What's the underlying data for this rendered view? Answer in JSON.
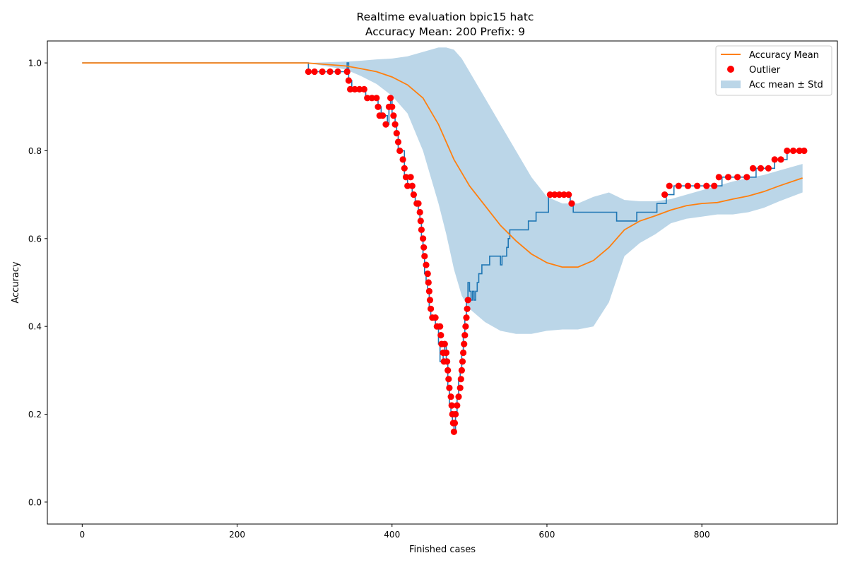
{
  "chart_data": {
    "type": "line",
    "title": "Realtime evaluation bpic15 hatc",
    "subtitle": "Accuracy Mean: 200 Prefix: 9",
    "xlabel": "Finished cases",
    "ylabel": "Accuracy",
    "xlim": [
      -45,
      975
    ],
    "ylim": [
      -0.05,
      1.05
    ],
    "xticks": [
      0,
      200,
      400,
      600,
      800
    ],
    "xtick_labels": [
      "0",
      "200",
      "400",
      "600",
      "800"
    ],
    "yticks": [
      0.0,
      0.2,
      0.4,
      0.6,
      0.8,
      1.0
    ],
    "ytick_labels": [
      "0.0",
      "0.2",
      "0.4",
      "0.6",
      "0.8",
      "1.0"
    ],
    "grid": false,
    "legend_position": "top-right",
    "legend": {
      "mean": "Accuracy Mean",
      "outlier": "Outlier",
      "band": "Acc mean ± Std"
    },
    "colors": {
      "accuracy": "#1f77b4",
      "mean": "#ff7f0e",
      "outlier": "#ff0000",
      "band": "#1f77b4"
    },
    "series": [
      {
        "kind": "accuracy",
        "x": [
          0,
          290,
          292,
          294,
          340,
          342,
          344,
          348,
          352,
          356,
          360,
          366,
          370,
          374,
          378,
          382,
          386,
          390,
          394,
          396,
          398,
          400,
          404,
          406,
          408,
          412,
          416,
          420,
          426,
          430,
          434,
          436,
          438,
          440,
          442,
          444,
          446,
          448,
          450,
          452,
          456,
          460,
          462,
          466,
          468,
          470,
          472,
          474,
          476,
          478,
          480,
          482,
          484,
          486,
          488,
          490,
          492,
          494,
          496,
          498,
          500,
          502,
          504,
          506,
          508,
          510,
          512,
          514,
          516,
          520,
          526,
          530,
          540,
          542,
          546,
          548,
          550,
          552,
          556,
          566,
          572,
          576,
          582,
          586,
          598,
          602,
          606,
          618,
          626,
          630,
          634,
          642,
          656,
          676,
          690,
          702,
          716,
          730,
          742,
          750,
          754,
          764,
          786,
          804,
          818,
          826,
          846,
          862,
          870,
          894,
          910,
          930
        ],
        "y": [
          1.0,
          1.0,
          0.98,
          0.98,
          0.98,
          1.0,
          0.96,
          0.94,
          0.94,
          0.94,
          0.94,
          0.92,
          0.92,
          0.92,
          0.92,
          0.9,
          0.88,
          0.88,
          0.86,
          0.9,
          0.92,
          0.88,
          0.86,
          0.84,
          0.8,
          0.8,
          0.74,
          0.72,
          0.7,
          0.68,
          0.66,
          0.64,
          0.6,
          0.56,
          0.52,
          0.5,
          0.48,
          0.44,
          0.42,
          0.42,
          0.4,
          0.36,
          0.32,
          0.34,
          0.36,
          0.32,
          0.26,
          0.22,
          0.2,
          0.18,
          0.16,
          0.2,
          0.24,
          0.28,
          0.3,
          0.34,
          0.38,
          0.42,
          0.46,
          0.5,
          0.48,
          0.46,
          0.48,
          0.46,
          0.48,
          0.5,
          0.52,
          0.52,
          0.54,
          0.54,
          0.56,
          0.56,
          0.54,
          0.56,
          0.56,
          0.58,
          0.6,
          0.62,
          0.62,
          0.62,
          0.62,
          0.64,
          0.64,
          0.66,
          0.66,
          0.7,
          0.7,
          0.7,
          0.7,
          0.68,
          0.66,
          0.66,
          0.66,
          0.66,
          0.64,
          0.64,
          0.66,
          0.66,
          0.68,
          0.68,
          0.7,
          0.72,
          0.72,
          0.72,
          0.72,
          0.74,
          0.74,
          0.74,
          0.76,
          0.78,
          0.8,
          0.8
        ]
      },
      {
        "kind": "mean",
        "name": "Accuracy Mean",
        "x": [
          0,
          200,
          290,
          340,
          360,
          380,
          400,
          420,
          440,
          460,
          480,
          500,
          520,
          540,
          560,
          580,
          600,
          620,
          640,
          660,
          680,
          700,
          720,
          740,
          760,
          780,
          800,
          820,
          840,
          860,
          880,
          900,
          930
        ],
        "y": [
          1.0,
          1.0,
          1.0,
          0.993,
          0.987,
          0.98,
          0.968,
          0.95,
          0.92,
          0.86,
          0.78,
          0.72,
          0.675,
          0.63,
          0.595,
          0.565,
          0.545,
          0.535,
          0.535,
          0.55,
          0.58,
          0.62,
          0.64,
          0.652,
          0.665,
          0.675,
          0.68,
          0.682,
          0.69,
          0.697,
          0.707,
          0.72,
          0.738
        ]
      },
      {
        "kind": "outlier",
        "name": "Outlier",
        "points": [
          [
            292,
            0.98
          ],
          [
            300,
            0.98
          ],
          [
            310,
            0.98
          ],
          [
            320,
            0.98
          ],
          [
            330,
            0.98
          ],
          [
            342,
            0.98
          ],
          [
            344,
            0.96
          ],
          [
            346,
            0.94
          ],
          [
            352,
            0.94
          ],
          [
            358,
            0.94
          ],
          [
            364,
            0.94
          ],
          [
            368,
            0.92
          ],
          [
            374,
            0.92
          ],
          [
            380,
            0.92
          ],
          [
            382,
            0.9
          ],
          [
            384,
            0.88
          ],
          [
            388,
            0.88
          ],
          [
            392,
            0.86
          ],
          [
            396,
            0.9
          ],
          [
            398,
            0.92
          ],
          [
            400,
            0.9
          ],
          [
            402,
            0.88
          ],
          [
            404,
            0.86
          ],
          [
            406,
            0.84
          ],
          [
            408,
            0.82
          ],
          [
            410,
            0.8
          ],
          [
            414,
            0.78
          ],
          [
            416,
            0.76
          ],
          [
            418,
            0.74
          ],
          [
            420,
            0.72
          ],
          [
            424,
            0.74
          ],
          [
            426,
            0.72
          ],
          [
            428,
            0.7
          ],
          [
            432,
            0.68
          ],
          [
            434,
            0.68
          ],
          [
            436,
            0.66
          ],
          [
            437,
            0.64
          ],
          [
            438,
            0.62
          ],
          [
            440,
            0.6
          ],
          [
            441,
            0.58
          ],
          [
            442,
            0.56
          ],
          [
            444,
            0.54
          ],
          [
            446,
            0.52
          ],
          [
            447,
            0.5
          ],
          [
            448,
            0.48
          ],
          [
            449,
            0.46
          ],
          [
            450,
            0.44
          ],
          [
            452,
            0.42
          ],
          [
            456,
            0.42
          ],
          [
            458,
            0.4
          ],
          [
            462,
            0.4
          ],
          [
            463,
            0.38
          ],
          [
            464,
            0.36
          ],
          [
            466,
            0.34
          ],
          [
            467,
            0.32
          ],
          [
            468,
            0.36
          ],
          [
            470,
            0.34
          ],
          [
            471,
            0.32
          ],
          [
            472,
            0.3
          ],
          [
            473,
            0.28
          ],
          [
            474,
            0.26
          ],
          [
            476,
            0.24
          ],
          [
            477,
            0.22
          ],
          [
            478,
            0.2
          ],
          [
            479,
            0.18
          ],
          [
            480,
            0.16
          ],
          [
            481,
            0.18
          ],
          [
            482,
            0.2
          ],
          [
            484,
            0.22
          ],
          [
            486,
            0.24
          ],
          [
            488,
            0.26
          ],
          [
            489,
            0.28
          ],
          [
            490,
            0.3
          ],
          [
            491,
            0.32
          ],
          [
            492,
            0.34
          ],
          [
            493,
            0.36
          ],
          [
            494,
            0.38
          ],
          [
            495,
            0.4
          ],
          [
            496,
            0.42
          ],
          [
            497,
            0.44
          ],
          [
            498,
            0.46
          ],
          [
            604,
            0.7
          ],
          [
            610,
            0.7
          ],
          [
            616,
            0.7
          ],
          [
            622,
            0.7
          ],
          [
            628,
            0.7
          ],
          [
            632,
            0.68
          ],
          [
            752,
            0.7
          ],
          [
            758,
            0.72
          ],
          [
            770,
            0.72
          ],
          [
            782,
            0.72
          ],
          [
            794,
            0.72
          ],
          [
            806,
            0.72
          ],
          [
            816,
            0.72
          ],
          [
            822,
            0.74
          ],
          [
            834,
            0.74
          ],
          [
            846,
            0.74
          ],
          [
            858,
            0.74
          ],
          [
            866,
            0.76
          ],
          [
            876,
            0.76
          ],
          [
            886,
            0.76
          ],
          [
            894,
            0.78
          ],
          [
            902,
            0.78
          ],
          [
            910,
            0.8
          ],
          [
            918,
            0.8
          ],
          [
            926,
            0.8
          ],
          [
            932,
            0.8
          ]
        ]
      },
      {
        "kind": "band",
        "name": "Acc mean ± Std",
        "x": [
          290,
          340,
          360,
          380,
          400,
          420,
          440,
          460,
          470,
          480,
          490,
          500,
          520,
          540,
          560,
          580,
          600,
          620,
          640,
          660,
          680,
          700,
          720,
          740,
          760,
          780,
          800,
          820,
          840,
          860,
          880,
          900,
          930
        ],
        "upper": [
          1.0,
          1.003,
          1.005,
          1.008,
          1.01,
          1.015,
          1.025,
          1.035,
          1.035,
          1.03,
          1.01,
          0.98,
          0.92,
          0.86,
          0.8,
          0.74,
          0.695,
          0.68,
          0.68,
          0.695,
          0.705,
          0.688,
          0.685,
          0.685,
          0.69,
          0.7,
          0.71,
          0.72,
          0.73,
          0.738,
          0.745,
          0.755,
          0.77
        ],
        "lower": [
          1.0,
          0.985,
          0.97,
          0.952,
          0.925,
          0.885,
          0.8,
          0.68,
          0.61,
          0.53,
          0.47,
          0.44,
          0.41,
          0.39,
          0.383,
          0.383,
          0.39,
          0.393,
          0.393,
          0.4,
          0.455,
          0.56,
          0.59,
          0.61,
          0.635,
          0.645,
          0.65,
          0.655,
          0.655,
          0.66,
          0.67,
          0.685,
          0.705
        ]
      }
    ]
  }
}
